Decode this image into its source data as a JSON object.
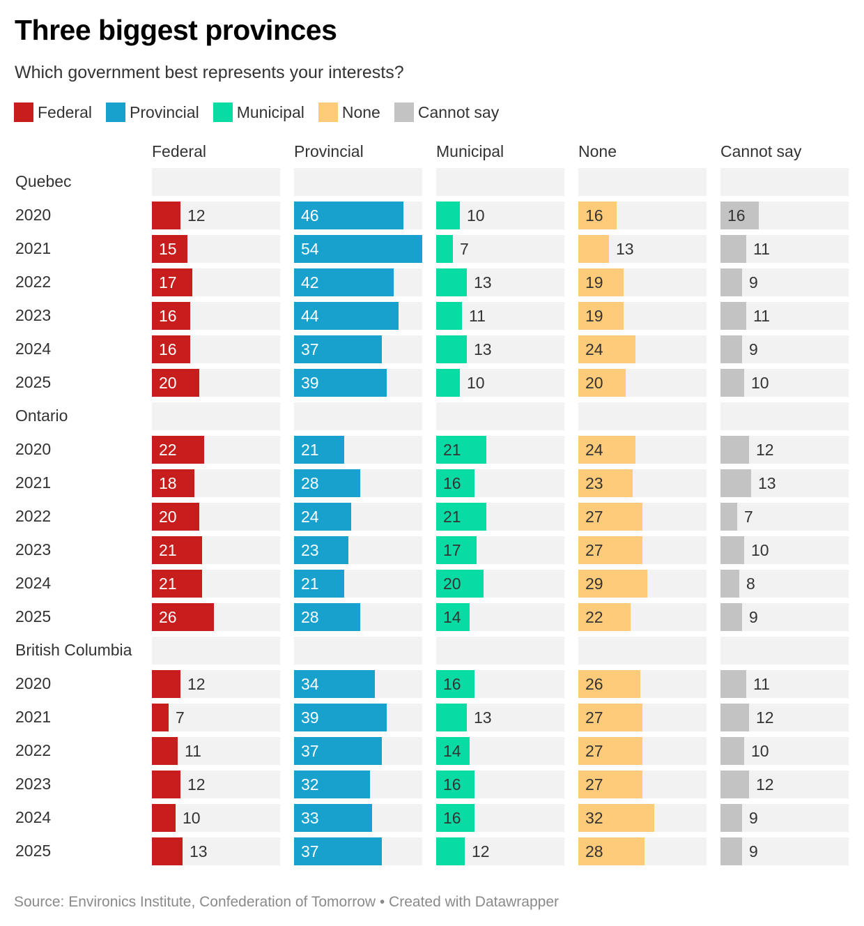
{
  "title": "Three biggest provinces",
  "subtitle": "Which government best represents your interests?",
  "source": "Source: Environics Institute, Confederation of Tomorrow • Created with Datawrapper",
  "chart_data": {
    "type": "bar",
    "title": "Three biggest provinces",
    "subtitle": "Which government best represents your interests?",
    "columns": [
      "Federal",
      "Provincial",
      "Municipal",
      "None",
      "Cannot say"
    ],
    "colors": [
      "#c71e1d",
      "#18a1cd",
      "#09dba5",
      "#fecb7a",
      "#c3c3c3"
    ],
    "xlim": [
      0,
      54
    ],
    "legend_position": "top-left",
    "sections": [
      {
        "name": "Quebec",
        "rows": [
          {
            "year": "2020",
            "values": [
              12,
              46,
              10,
              16,
              16
            ]
          },
          {
            "year": "2021",
            "values": [
              15,
              54,
              7,
              13,
              11
            ]
          },
          {
            "year": "2022",
            "values": [
              17,
              42,
              13,
              19,
              9
            ]
          },
          {
            "year": "2023",
            "values": [
              16,
              44,
              11,
              19,
              11
            ]
          },
          {
            "year": "2024",
            "values": [
              16,
              37,
              13,
              24,
              9
            ]
          },
          {
            "year": "2025",
            "values": [
              20,
              39,
              10,
              20,
              10
            ]
          }
        ]
      },
      {
        "name": "Ontario",
        "rows": [
          {
            "year": "2020",
            "values": [
              22,
              21,
              21,
              24,
              12
            ]
          },
          {
            "year": "2021",
            "values": [
              18,
              28,
              16,
              23,
              13
            ]
          },
          {
            "year": "2022",
            "values": [
              20,
              24,
              21,
              27,
              7
            ]
          },
          {
            "year": "2023",
            "values": [
              21,
              23,
              17,
              27,
              10
            ]
          },
          {
            "year": "2024",
            "values": [
              21,
              21,
              20,
              29,
              8
            ]
          },
          {
            "year": "2025",
            "values": [
              26,
              28,
              14,
              22,
              9
            ]
          }
        ]
      },
      {
        "name": "British Columbia",
        "rows": [
          {
            "year": "2020",
            "values": [
              12,
              34,
              16,
              26,
              11
            ]
          },
          {
            "year": "2021",
            "values": [
              7,
              39,
              13,
              27,
              12
            ]
          },
          {
            "year": "2022",
            "values": [
              11,
              37,
              14,
              27,
              10
            ]
          },
          {
            "year": "2023",
            "values": [
              12,
              32,
              16,
              27,
              12
            ]
          },
          {
            "year": "2024",
            "values": [
              10,
              33,
              16,
              32,
              9
            ]
          },
          {
            "year": "2025",
            "values": [
              13,
              37,
              12,
              28,
              9
            ]
          }
        ]
      }
    ]
  }
}
